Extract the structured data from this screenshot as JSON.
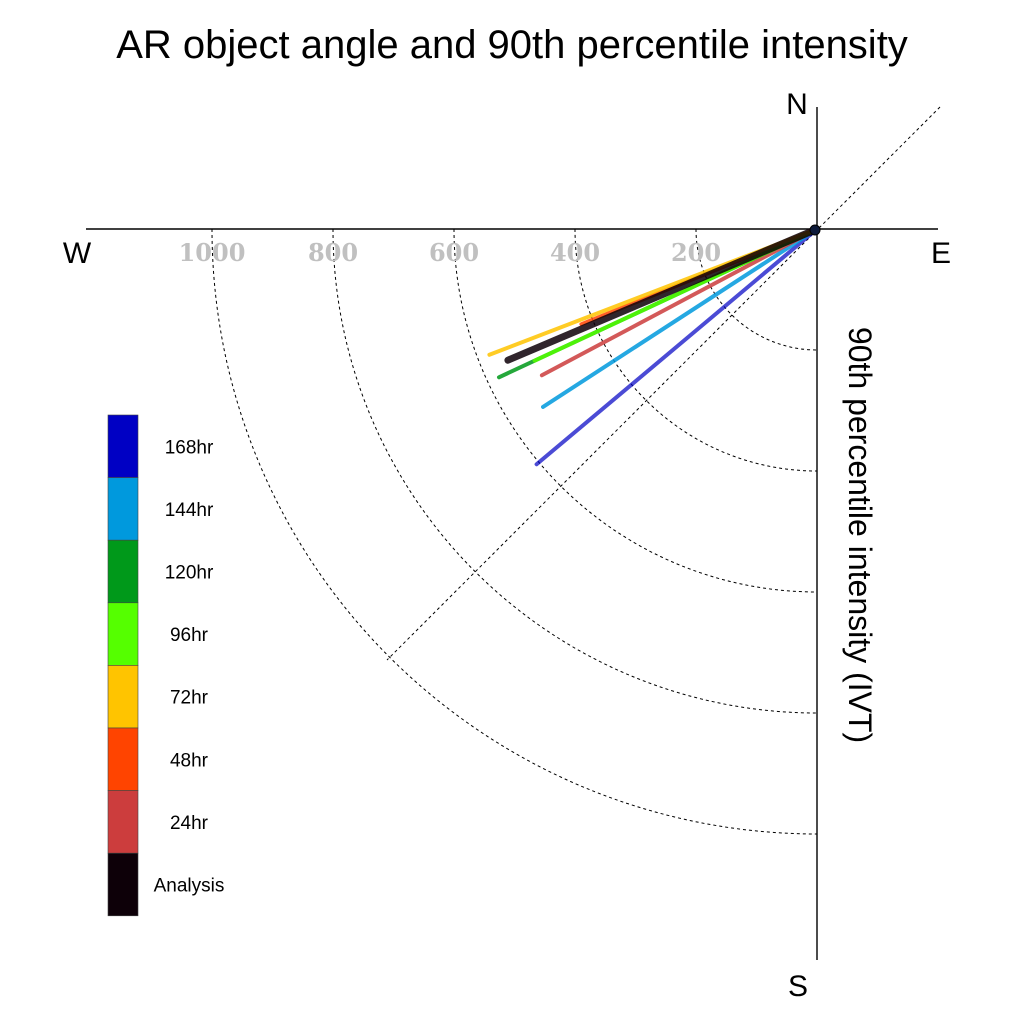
{
  "chart_data": {
    "type": "polar-vectors",
    "title": "AR object angle and 90th percentile intensity",
    "ylabel": "90th percentile intensity (IVT)",
    "compass": {
      "north": "N",
      "south": "S",
      "east": "E",
      "west": "W"
    },
    "radial_ticks": [
      "1000",
      "800",
      "600",
      "400",
      "200"
    ],
    "radial_tick_values": [
      1000,
      800,
      600,
      400,
      200
    ],
    "radial_rings": [
      200,
      400,
      600,
      800,
      1000
    ],
    "diagonal_guide": true,
    "legend_placement": "left",
    "series": [
      {
        "name": "Analysis",
        "color": "#0d0008",
        "angle_deg": -157,
        "intensity": 555,
        "linewidth": 7
      },
      {
        "name": "24hr",
        "color": "#cc3d3d",
        "angle_deg": -152,
        "intensity": 515,
        "linewidth": 4
      },
      {
        "name": "48hr",
        "color": "#ff4400",
        "angle_deg": -158,
        "intensity": 420,
        "linewidth": 4
      },
      {
        "name": "72hr",
        "color": "#ffc400",
        "angle_deg": -159,
        "intensity": 580,
        "linewidth": 4
      },
      {
        "name": "96hr",
        "color": "#55ff00",
        "angle_deg": -155,
        "intensity": 515,
        "linewidth": 4
      },
      {
        "name": "120hr",
        "color": "#00991a",
        "angle_deg": -155,
        "intensity": 580,
        "linewidth": 4
      },
      {
        "name": "144hr",
        "color": "#0099dd",
        "angle_deg": -147,
        "intensity": 540,
        "linewidth": 4
      },
      {
        "name": "168hr",
        "color": "#0000c4",
        "angle_deg": -140,
        "intensity": 605,
        "linewidth": 4
      }
    ],
    "legend_order": [
      "168hr",
      "144hr",
      "120hr",
      "96hr",
      "72hr",
      "48hr",
      "24hr",
      "Analysis"
    ]
  }
}
